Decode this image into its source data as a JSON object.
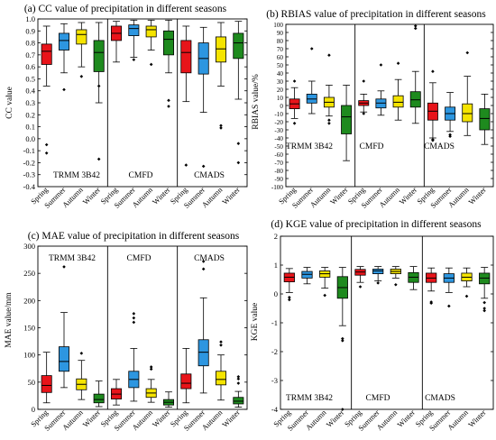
{
  "colors": {
    "spring": "#e8141a",
    "summer": "#2d96e0",
    "autumn": "#f5e400",
    "winter": "#1e8a1e",
    "axis": "#000000"
  },
  "chart_data": [
    {
      "type": "box",
      "title": "(a) CC value of precipitation in different seasons",
      "ylabel": "CC value",
      "ylim": [
        -0.4,
        1.0
      ],
      "yticks": [
        "-0.4",
        "-0.3",
        "-0.2",
        "-0.1",
        "0.0",
        "0.1",
        "0.2",
        "0.3",
        "0.4",
        "0.5",
        "0.6",
        "0.7",
        "0.8",
        "0.9",
        "1.0"
      ],
      "categories": [
        "Spring",
        "Summer",
        "Autumn",
        "Winter"
      ],
      "groups": [
        {
          "name": "TRMM 3B42",
          "boxes": [
            {
              "season": "Spring",
              "min": 0.44,
              "q1": 0.62,
              "median": 0.73,
              "q3": 0.79,
              "max": 0.94,
              "outliers": [
                -0.05,
                -0.12
              ]
            },
            {
              "season": "Summer",
              "min": 0.55,
              "q1": 0.74,
              "median": 0.82,
              "q3": 0.88,
              "max": 0.96,
              "outliers": [
                0.41
              ]
            },
            {
              "season": "Autumn",
              "min": 0.6,
              "q1": 0.79,
              "median": 0.87,
              "q3": 0.91,
              "max": 0.97,
              "outliers": [
                0.52
              ]
            },
            {
              "season": "Winter",
              "min": 0.3,
              "q1": 0.56,
              "median": 0.72,
              "q3": 0.82,
              "max": 0.97,
              "outliers": [
                0.44,
                -0.17
              ]
            }
          ]
        },
        {
          "name": "CMFD",
          "boxes": [
            {
              "season": "Spring",
              "min": 0.64,
              "q1": 0.82,
              "median": 0.88,
              "q3": 0.94,
              "max": 0.98,
              "outliers": []
            },
            {
              "season": "Summer",
              "min": 0.68,
              "q1": 0.86,
              "median": 0.92,
              "q3": 0.95,
              "max": 0.99,
              "outliers": [
                0.66
              ]
            },
            {
              "season": "Autumn",
              "min": 0.74,
              "q1": 0.85,
              "median": 0.91,
              "q3": 0.94,
              "max": 0.99,
              "outliers": [
                0.62
              ]
            },
            {
              "season": "Winter",
              "min": 0.55,
              "q1": 0.7,
              "median": 0.83,
              "q3": 0.9,
              "max": 0.99,
              "outliers": [
                0.32,
                0.27
              ]
            }
          ]
        },
        {
          "name": "CMADS",
          "boxes": [
            {
              "season": "Spring",
              "min": 0.31,
              "q1": 0.55,
              "median": 0.72,
              "q3": 0.82,
              "max": 0.94,
              "outliers": [
                -0.22
              ]
            },
            {
              "season": "Summer",
              "min": 0.22,
              "q1": 0.54,
              "median": 0.67,
              "q3": 0.8,
              "max": 0.93,
              "outliers": [
                -0.23
              ]
            },
            {
              "season": "Autumn",
              "min": 0.44,
              "q1": 0.64,
              "median": 0.75,
              "q3": 0.85,
              "max": 0.97,
              "outliers": [
                0.11,
                0.09
              ]
            },
            {
              "season": "Winter",
              "min": 0.33,
              "q1": 0.67,
              "median": 0.8,
              "q3": 0.88,
              "max": 0.98,
              "outliers": [
                -0.04,
                -0.2
              ]
            }
          ]
        }
      ]
    },
    {
      "type": "box",
      "title": "(b) RBIAS value of precipitation in different seasons",
      "ylabel": "RBIAS value/%",
      "ylim": [
        -100,
        100
      ],
      "yticks": [
        "-100",
        "-90",
        "-80",
        "-70",
        "-60",
        "-50",
        "-40",
        "-30",
        "-20",
        "-10",
        "0",
        "10",
        "20",
        "30",
        "40",
        "50",
        "60",
        "70",
        "80",
        "90",
        "100"
      ],
      "categories": [
        "Spring",
        "Summer",
        "Autumn",
        "Winter"
      ],
      "groups": [
        {
          "name": "TRMM 3B42",
          "boxes": [
            {
              "season": "Spring",
              "min": -16,
              "q1": -4,
              "median": 2,
              "q3": 8,
              "max": 22,
              "outliers": [
                -22,
                30
              ]
            },
            {
              "season": "Summer",
              "min": -10,
              "q1": 3,
              "median": 8,
              "q3": 14,
              "max": 30,
              "outliers": [
                70
              ]
            },
            {
              "season": "Autumn",
              "min": -13,
              "q1": -2,
              "median": 4,
              "q3": 10,
              "max": 25,
              "outliers": [
                -22,
                -18,
                62
              ]
            },
            {
              "season": "Winter",
              "min": -68,
              "q1": -35,
              "median": -14,
              "q3": 0,
              "max": 25,
              "outliers": []
            }
          ]
        },
        {
          "name": "CMFD",
          "boxes": [
            {
              "season": "Spring",
              "min": -8,
              "q1": 0,
              "median": 3,
              "q3": 6,
              "max": 14,
              "outliers": [
                -10,
                30
              ]
            },
            {
              "season": "Summer",
              "min": -12,
              "q1": -3,
              "median": 3,
              "q3": 8,
              "max": 18,
              "outliers": [
                50
              ]
            },
            {
              "season": "Autumn",
              "min": -18,
              "q1": -2,
              "median": 4,
              "q3": 12,
              "max": 32,
              "outliers": [
                52
              ]
            },
            {
              "season": "Winter",
              "min": -22,
              "q1": -2,
              "median": 7,
              "q3": 17,
              "max": 42,
              "outliers": [
                95,
                98
              ]
            }
          ]
        },
        {
          "name": "CMADS",
          "boxes": [
            {
              "season": "Spring",
              "min": -40,
              "q1": -18,
              "median": -7,
              "q3": 3,
              "max": 28,
              "outliers": [
                -42,
                -43,
                42
              ]
            },
            {
              "season": "Summer",
              "min": -32,
              "q1": -18,
              "median": -10,
              "q3": -2,
              "max": 16,
              "outliers": [
                -38,
                -36
              ]
            },
            {
              "season": "Autumn",
              "min": -37,
              "q1": -20,
              "median": -10,
              "q3": 2,
              "max": 36,
              "outliers": [
                65
              ]
            },
            {
              "season": "Winter",
              "min": -48,
              "q1": -30,
              "median": -16,
              "q3": -4,
              "max": 14,
              "outliers": []
            }
          ]
        }
      ]
    },
    {
      "type": "box",
      "title": "(c) MAE value of precipitation in different seasons",
      "ylabel": "MAE value/mm",
      "ylim": [
        0,
        300
      ],
      "yticks": [
        "0",
        "50",
        "100",
        "150",
        "200",
        "250",
        "300"
      ],
      "categories": [
        "Spring",
        "Summer",
        "Autumn",
        "Winter"
      ],
      "groups": [
        {
          "name": "TRMM 3B42",
          "boxes": [
            {
              "season": "Spring",
              "min": 12,
              "q1": 31,
              "median": 44,
              "q3": 62,
              "max": 105,
              "outliers": []
            },
            {
              "season": "Summer",
              "min": 40,
              "q1": 70,
              "median": 88,
              "q3": 115,
              "max": 178,
              "outliers": [
                262
              ]
            },
            {
              "season": "Autumn",
              "min": 18,
              "q1": 36,
              "median": 46,
              "q3": 56,
              "max": 90,
              "outliers": [
                103
              ]
            },
            {
              "season": "Winter",
              "min": 5,
              "q1": 12,
              "median": 18,
              "q3": 28,
              "max": 52,
              "outliers": []
            }
          ]
        },
        {
          "name": "CMFD",
          "boxes": [
            {
              "season": "Spring",
              "min": 8,
              "q1": 19,
              "median": 28,
              "q3": 38,
              "max": 55,
              "outliers": []
            },
            {
              "season": "Summer",
              "min": 15,
              "q1": 40,
              "median": 55,
              "q3": 70,
              "max": 112,
              "outliers": [
                160,
                168,
                176
              ]
            },
            {
              "season": "Autumn",
              "min": 13,
              "q1": 22,
              "median": 30,
              "q3": 38,
              "max": 55,
              "outliers": [
                74,
                78
              ]
            },
            {
              "season": "Winter",
              "min": 4,
              "q1": 8,
              "median": 13,
              "q3": 18,
              "max": 32,
              "outliers": []
            }
          ]
        },
        {
          "name": "CMADS",
          "boxes": [
            {
              "season": "Spring",
              "min": 12,
              "q1": 38,
              "median": 48,
              "q3": 65,
              "max": 112,
              "outliers": []
            },
            {
              "season": "Summer",
              "min": 30,
              "q1": 80,
              "median": 105,
              "q3": 128,
              "max": 205,
              "outliers": [
                258,
                272
              ]
            },
            {
              "season": "Autumn",
              "min": 17,
              "q1": 45,
              "median": 55,
              "q3": 70,
              "max": 100,
              "outliers": [
                118,
                124
              ]
            },
            {
              "season": "Winter",
              "min": 4,
              "q1": 10,
              "median": 15,
              "q3": 22,
              "max": 33,
              "outliers": [
                48,
                56,
                60
              ]
            }
          ]
        }
      ]
    },
    {
      "type": "box",
      "title": "(d) KGE value of precipitation in different seasons",
      "ylabel": "KGE value",
      "ylim": [
        -4,
        2
      ],
      "yticks": [
        "-4",
        "-3",
        "-2",
        "-1",
        "0",
        "1",
        "2"
      ],
      "categories": [
        "Spring",
        "Summer",
        "Autumn",
        "Winter"
      ],
      "groups": [
        {
          "name": "TRMM 3B42",
          "boxes": [
            {
              "season": "Spring",
              "min": 0.05,
              "q1": 0.42,
              "median": 0.58,
              "q3": 0.72,
              "max": 0.88,
              "outliers": [
                -0.12,
                -0.2
              ]
            },
            {
              "season": "Summer",
              "min": 0.35,
              "q1": 0.55,
              "median": 0.68,
              "q3": 0.78,
              "max": 0.92,
              "outliers": []
            },
            {
              "season": "Autumn",
              "min": 0.2,
              "q1": 0.58,
              "median": 0.7,
              "q3": 0.8,
              "max": 0.92,
              "outliers": [
                -0.05
              ]
            },
            {
              "season": "Winter",
              "min": -1.1,
              "q1": -0.15,
              "median": 0.22,
              "q3": 0.6,
              "max": 0.92,
              "outliers": [
                -1.55,
                -1.62,
                -4.0
              ]
            }
          ]
        },
        {
          "name": "CMFD",
          "boxes": [
            {
              "season": "Spring",
              "min": 0.4,
              "q1": 0.65,
              "median": 0.76,
              "q3": 0.85,
              "max": 0.95,
              "outliers": [
                0.25
              ]
            },
            {
              "season": "Summer",
              "min": 0.45,
              "q1": 0.7,
              "median": 0.8,
              "q3": 0.86,
              "max": 0.95,
              "outliers": [
                0.38
              ]
            },
            {
              "season": "Autumn",
              "min": 0.55,
              "q1": 0.7,
              "median": 0.78,
              "q3": 0.86,
              "max": 0.95,
              "outliers": [
                0.32
              ]
            },
            {
              "season": "Winter",
              "min": 0.15,
              "q1": 0.4,
              "median": 0.58,
              "q3": 0.74,
              "max": 0.95,
              "outliers": []
            }
          ]
        },
        {
          "name": "CMADS",
          "boxes": [
            {
              "season": "Spring",
              "min": 0.1,
              "q1": 0.4,
              "median": 0.55,
              "q3": 0.72,
              "max": 0.9,
              "outliers": [
                -0.28,
                -0.32
              ]
            },
            {
              "season": "Summer",
              "min": 0.05,
              "q1": 0.4,
              "median": 0.55,
              "q3": 0.7,
              "max": 0.9,
              "outliers": [
                -0.42
              ]
            },
            {
              "season": "Autumn",
              "min": 0.25,
              "q1": 0.45,
              "median": 0.58,
              "q3": 0.72,
              "max": 0.9,
              "outliers": [
                -0.08
              ]
            },
            {
              "season": "Winter",
              "min": -0.15,
              "q1": 0.35,
              "median": 0.55,
              "q3": 0.72,
              "max": 0.92,
              "outliers": [
                -0.3,
                -0.5,
                -0.58
              ]
            }
          ]
        }
      ]
    }
  ]
}
